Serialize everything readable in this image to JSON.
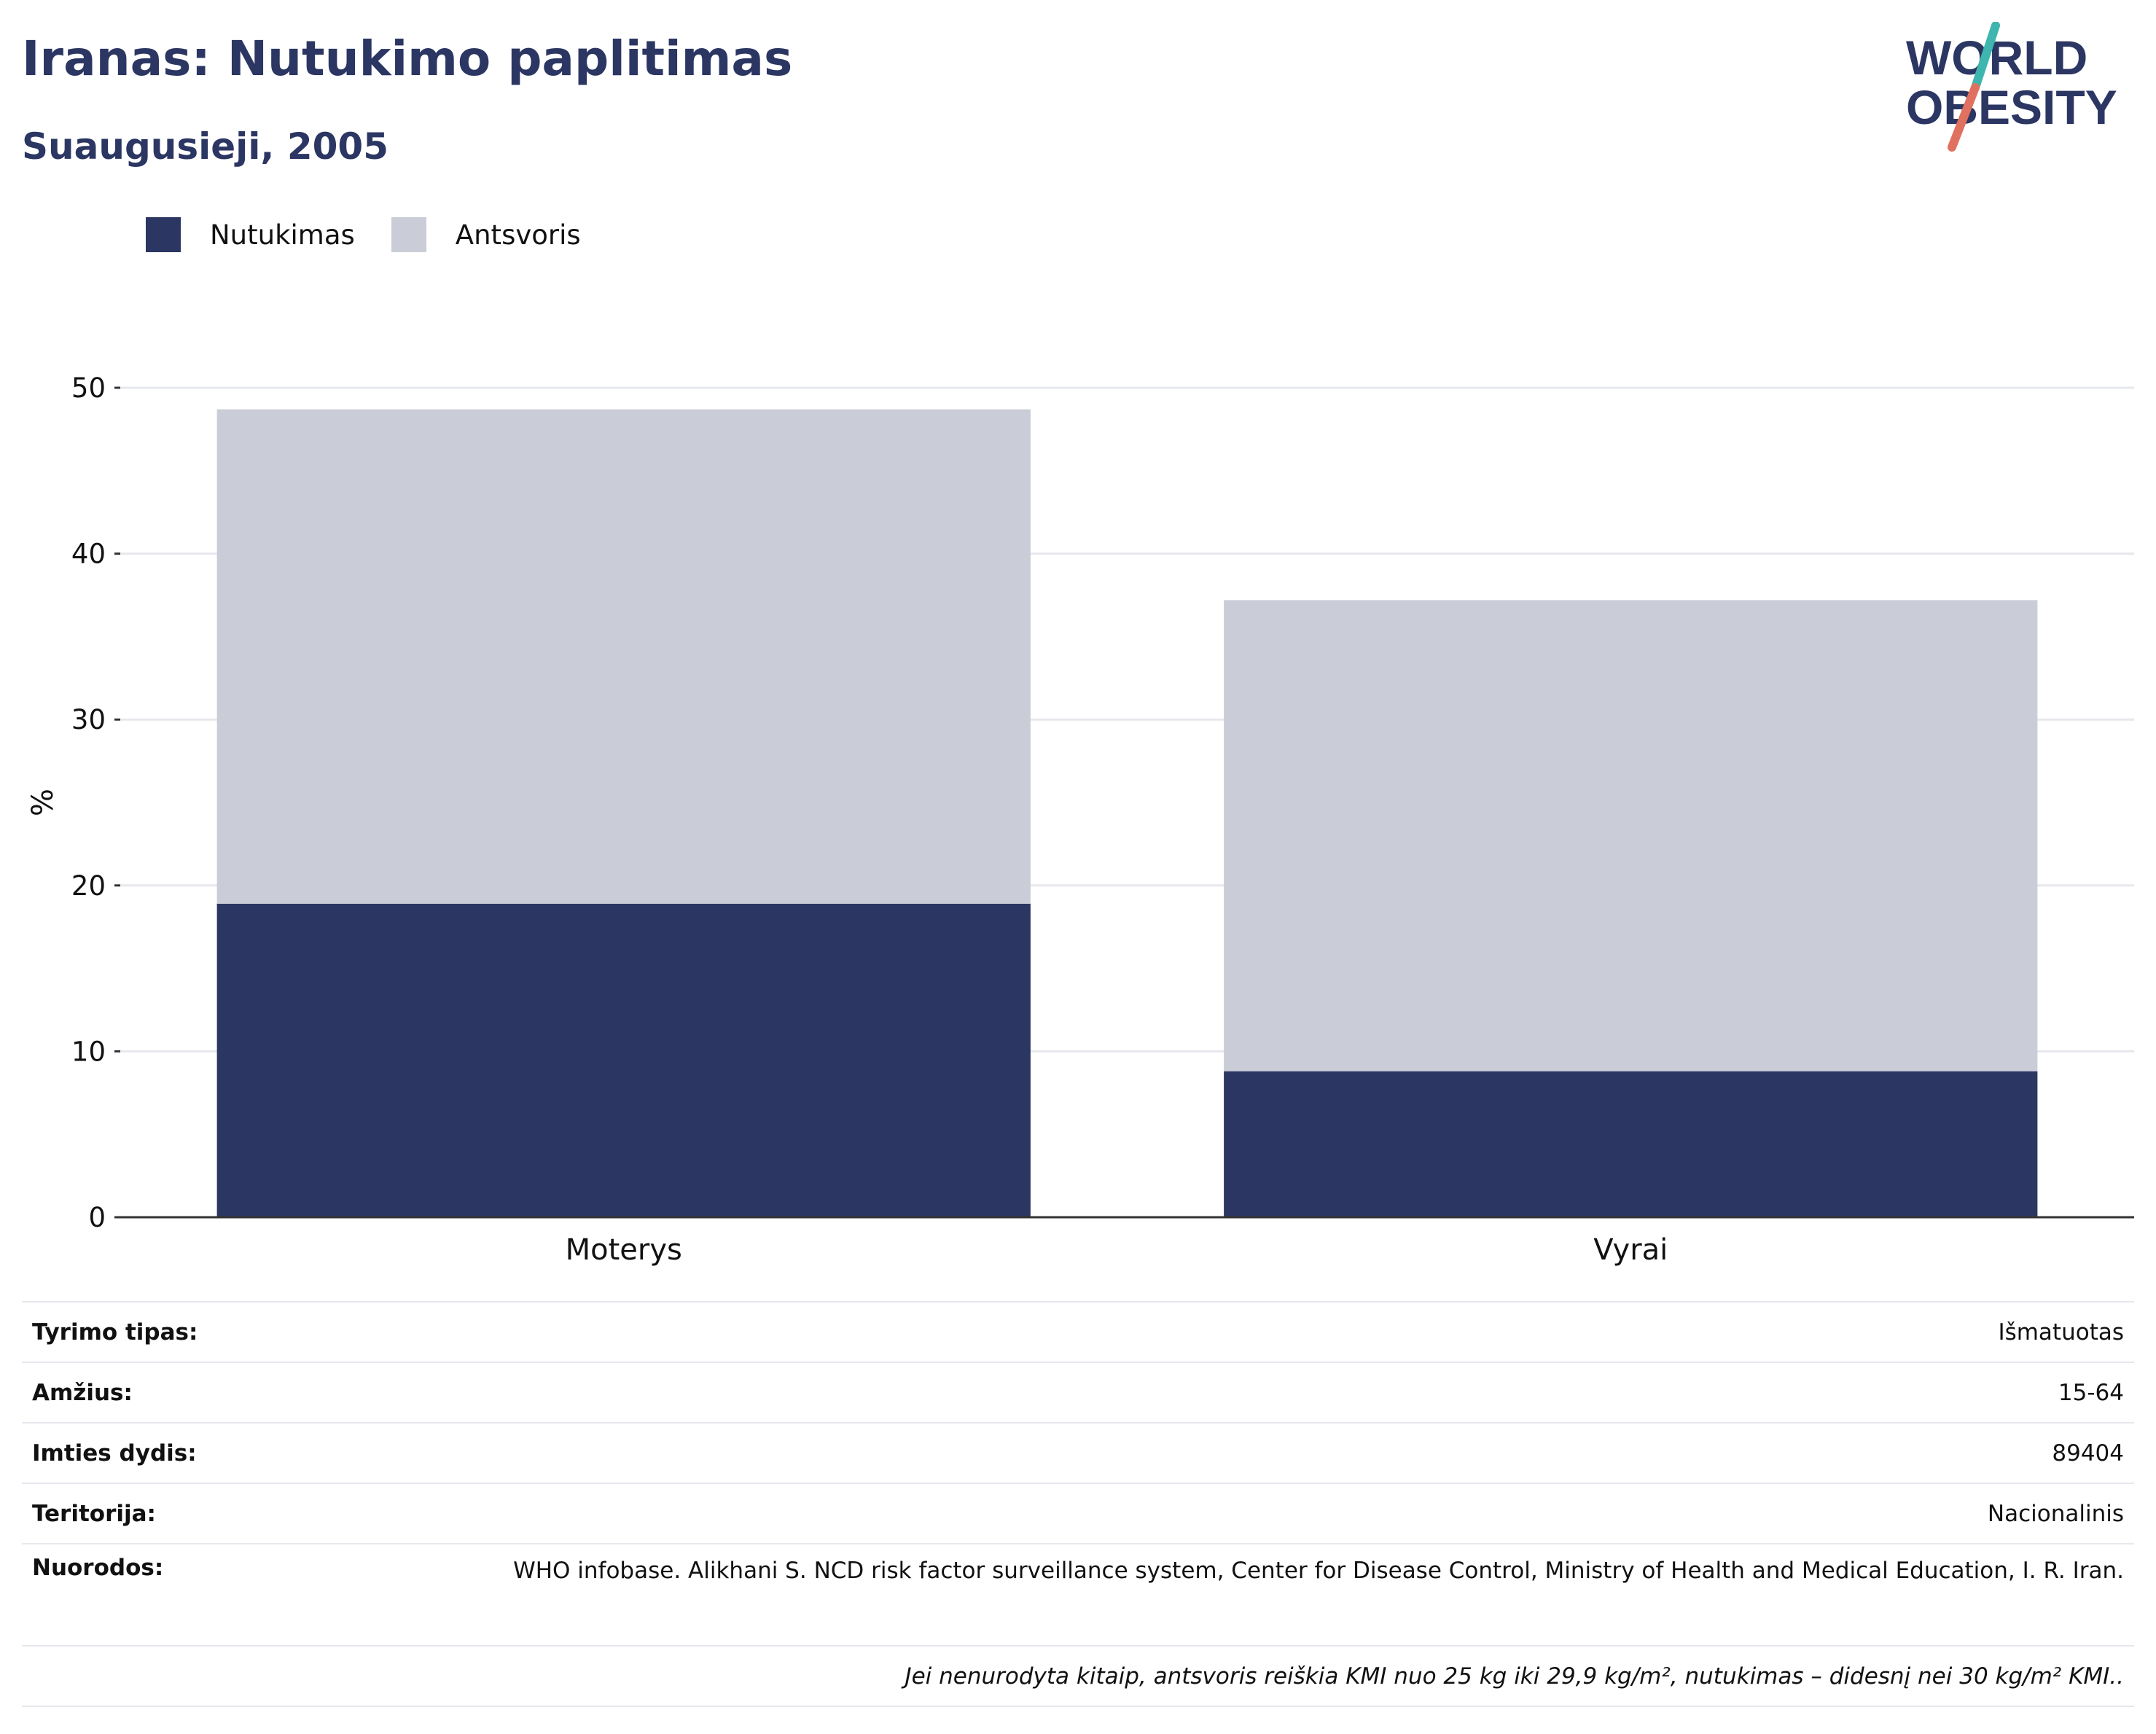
{
  "header": {
    "title": "Iranas: Nutukimo paplitimas",
    "subtitle": "Suaugusieji, 2005"
  },
  "logo": {
    "line1": "WORLD",
    "line2": "OBESITY",
    "colors": {
      "text": "#2b3663",
      "slash_top": "#3fb5b0",
      "slash_bottom": "#e0705f"
    }
  },
  "colors": {
    "obesity": "#2b3663",
    "overweight": "#cacdd8",
    "grid": "#e6e8ee",
    "axis": "#333333"
  },
  "chart_data": {
    "type": "bar",
    "stacked": true,
    "categories": [
      "Moterys",
      "Vyrai"
    ],
    "series": [
      {
        "name": "Nutukimas",
        "values": [
          18.9,
          8.8
        ]
      },
      {
        "name": "Antsvoris",
        "values": [
          29.8,
          28.4
        ]
      }
    ],
    "ylabel": "%",
    "ylim": [
      0,
      50
    ],
    "yticks": [
      0,
      10,
      20,
      30,
      40,
      50
    ],
    "grid": true,
    "legend": "top-left"
  },
  "details": {
    "rows": [
      {
        "label": "Tyrimo tipas:",
        "value": "Išmatuotas"
      },
      {
        "label": "Amžius:",
        "value": "15-64"
      },
      {
        "label": "Imties dydis:",
        "value": "89404"
      },
      {
        "label": "Teritorija:",
        "value": "Nacionalinis"
      },
      {
        "label": "Nuorodos:",
        "value": "WHO infobase. Alikhani S. NCD risk factor surveillance system, Center for Disease Control, Ministry of Health and Medical Education, I. R. Iran."
      }
    ],
    "note": "Jei nenurodyta kitaip, antsvoris reiškia KMI nuo 25 kg iki 29,9 kg/m², nutukimas – didesnį nei 30 kg/m² KMI.."
  }
}
